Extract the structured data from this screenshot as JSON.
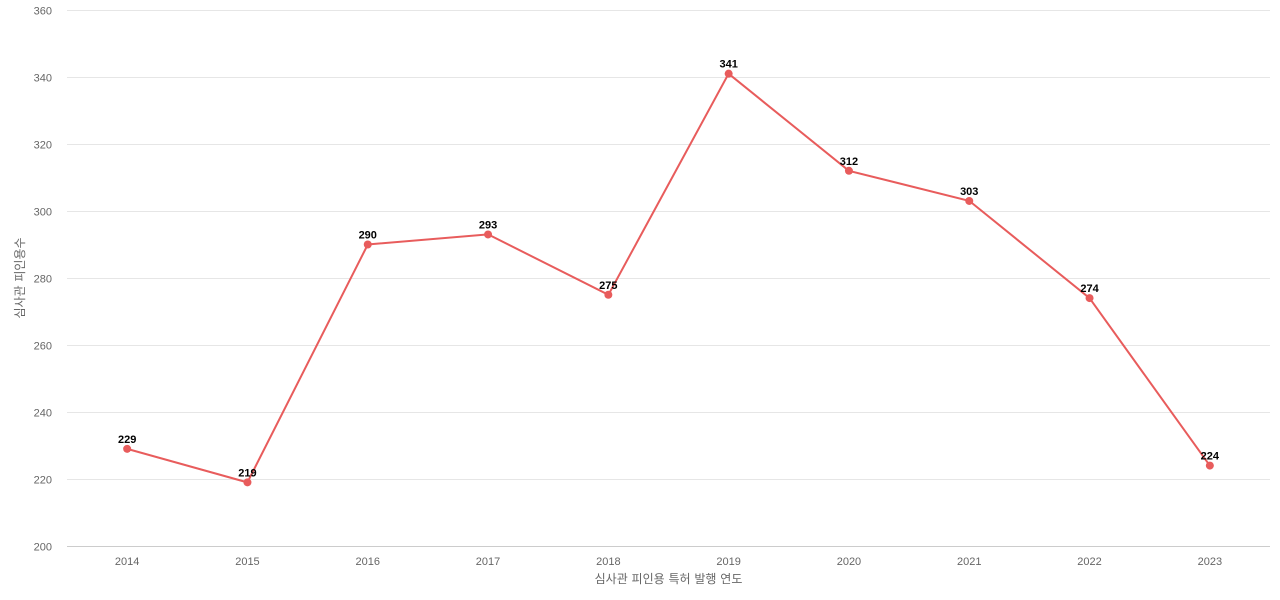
{
  "chart_data": {
    "type": "line",
    "categories": [
      "2014",
      "2015",
      "2016",
      "2017",
      "2018",
      "2019",
      "2020",
      "2021",
      "2022",
      "2023"
    ],
    "series": [
      {
        "values": [
          229,
          219,
          290,
          293,
          275,
          341,
          312,
          303,
          274,
          224
        ]
      }
    ],
    "xlabel": "심사관 피인용 특허 발행 연도",
    "ylabel": "심사관 피인용수",
    "ylim": [
      200,
      360
    ],
    "yticks": [
      200,
      220,
      240,
      260,
      280,
      300,
      320,
      340,
      360
    ],
    "grid": true,
    "data_labels": true,
    "colors": {
      "series": "#e85c5c"
    }
  }
}
